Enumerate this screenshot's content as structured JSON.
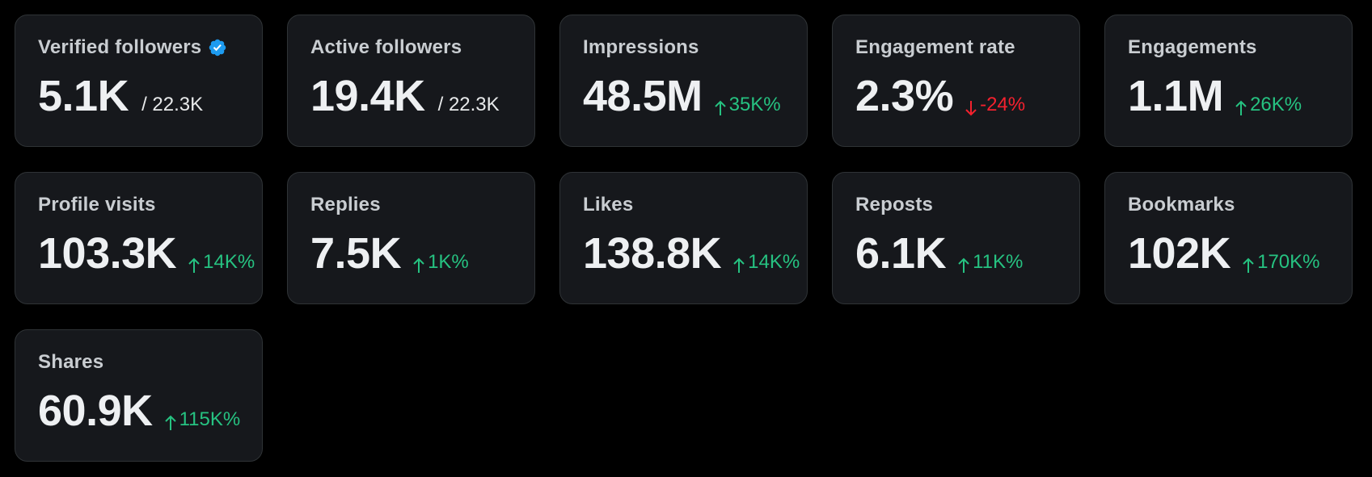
{
  "colors": {
    "background": "#000000",
    "card_background": "#16181c",
    "card_border": "#2f3336",
    "label": "#c9cdd1",
    "value": "#eef0f2",
    "positive": "#26c281",
    "negative": "#f4212e",
    "verified": "#1d9bf0"
  },
  "metrics": {
    "verified_followers": {
      "label": "Verified followers",
      "value": "5.1K",
      "total": "/ 22.3K",
      "icon": "verified-badge-icon"
    },
    "active_followers": {
      "label": "Active followers",
      "value": "19.4K",
      "total": "/ 22.3K"
    },
    "impressions": {
      "label": "Impressions",
      "value": "48.5M",
      "delta": "35K%",
      "direction": "up"
    },
    "engagement_rate": {
      "label": "Engagement rate",
      "value": "2.3%",
      "delta": "-24%",
      "direction": "down"
    },
    "engagements": {
      "label": "Engagements",
      "value": "1.1M",
      "delta": "26K%",
      "direction": "up"
    },
    "profile_visits": {
      "label": "Profile visits",
      "value": "103.3K",
      "delta": "14K%",
      "direction": "up"
    },
    "replies": {
      "label": "Replies",
      "value": "7.5K",
      "delta": "1K%",
      "direction": "up"
    },
    "likes": {
      "label": "Likes",
      "value": "138.8K",
      "delta": "14K%",
      "direction": "up"
    },
    "reposts": {
      "label": "Reposts",
      "value": "6.1K",
      "delta": "11K%",
      "direction": "up"
    },
    "bookmarks": {
      "label": "Bookmarks",
      "value": "102K",
      "delta": "170K%",
      "direction": "up"
    },
    "shares": {
      "label": "Shares",
      "value": "60.9K",
      "delta": "115K%",
      "direction": "up"
    }
  }
}
